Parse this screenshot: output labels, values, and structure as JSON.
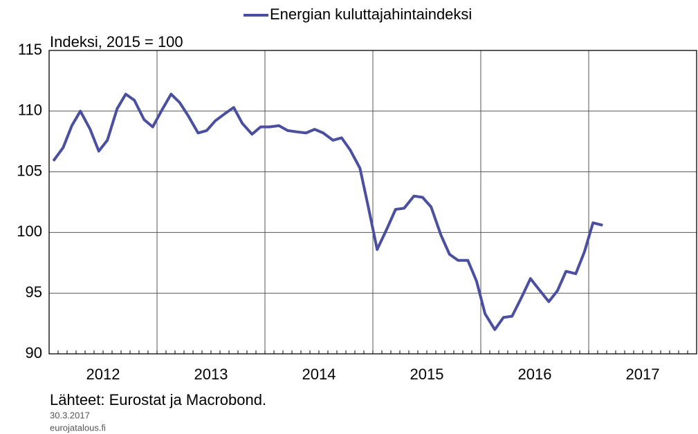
{
  "chart_data": {
    "type": "line",
    "y_label": "Indeksi, 2015 = 100",
    "sources": "Lähteet: Eurostat ja Macrobond.",
    "date": "30.3.2017",
    "site": "eurojatalous.fi",
    "xlim": [
      2012,
      2018
    ],
    "xticks": [
      2012,
      2013,
      2014,
      2015,
      2016,
      2017
    ],
    "ylim": [
      90,
      115
    ],
    "yticks": [
      90,
      95,
      100,
      105,
      110,
      115
    ],
    "grid": true,
    "legend": "top",
    "x": [
      2012.04,
      2012.13,
      2012.21,
      2012.29,
      2012.38,
      2012.46,
      2012.54,
      2012.63,
      2012.71,
      2012.79,
      2012.88,
      2012.96,
      2013.04,
      2013.13,
      2013.21,
      2013.29,
      2013.38,
      2013.46,
      2013.54,
      2013.63,
      2013.71,
      2013.79,
      2013.88,
      2013.96,
      2014.04,
      2014.13,
      2014.21,
      2014.29,
      2014.38,
      2014.46,
      2014.54,
      2014.63,
      2014.71,
      2014.79,
      2014.88,
      2014.96,
      2015.04,
      2015.13,
      2015.21,
      2015.29,
      2015.38,
      2015.46,
      2015.54,
      2015.63,
      2015.71,
      2015.79,
      2015.88,
      2015.96,
      2016.04,
      2016.13,
      2016.21,
      2016.29,
      2016.38,
      2016.46,
      2016.54,
      2016.63,
      2016.71,
      2016.79,
      2016.88,
      2016.96,
      2017.04,
      2017.13
    ],
    "series": [
      {
        "name": "Energian kuluttajahintaindeksi",
        "color": "#4a4f9f",
        "values": [
          105.9,
          107.0,
          108.8,
          110.0,
          108.5,
          106.7,
          107.6,
          110.2,
          111.4,
          110.9,
          109.3,
          108.7,
          110.0,
          111.4,
          110.7,
          109.6,
          108.2,
          108.4,
          109.2,
          109.8,
          110.3,
          109.0,
          108.1,
          108.7,
          108.7,
          108.8,
          108.4,
          108.3,
          108.2,
          108.5,
          108.2,
          107.6,
          107.8,
          106.8,
          105.3,
          102.0,
          98.6,
          100.3,
          101.9,
          102.0,
          103.0,
          102.9,
          102.1,
          99.8,
          98.2,
          97.7,
          97.7,
          96.0,
          93.3,
          92.0,
          93.0,
          93.1,
          94.7,
          96.2,
          95.3,
          94.3,
          95.2,
          96.8,
          96.6,
          98.4,
          100.8,
          100.6
        ]
      }
    ]
  }
}
